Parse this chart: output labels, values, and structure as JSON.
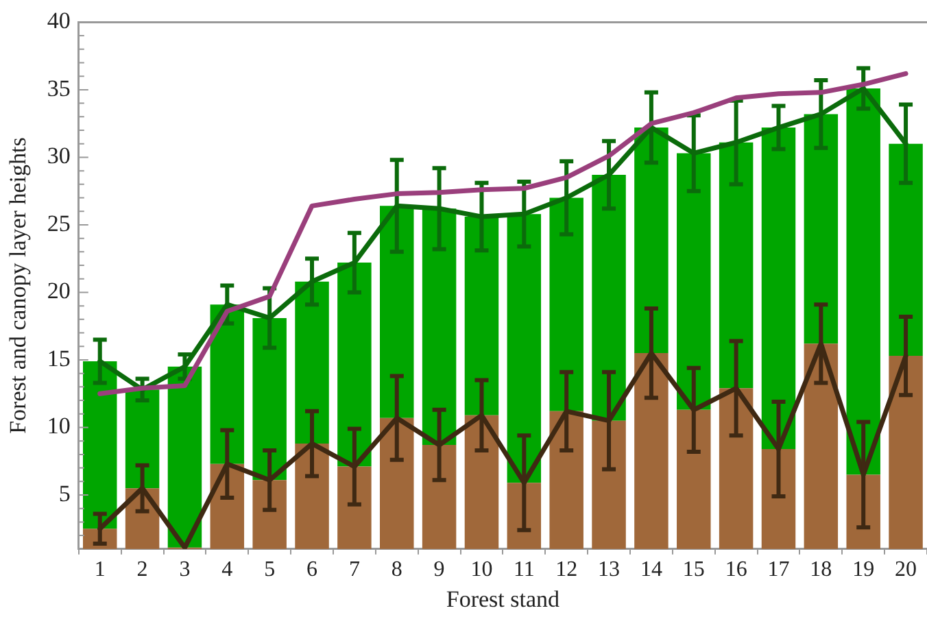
{
  "chart_data": {
    "type": "bar",
    "xlabel": "Forest stand",
    "ylabel": "Forest and canopy layer heights",
    "stacked": true,
    "x": [
      1,
      2,
      3,
      4,
      5,
      6,
      7,
      8,
      9,
      10,
      11,
      12,
      13,
      14,
      15,
      16,
      17,
      18,
      19,
      20
    ],
    "series": [
      {
        "color": "#a0683a",
        "values": [
          2.5,
          5.5,
          1.1,
          7.3,
          6.1,
          8.8,
          7.1,
          10.7,
          8.7,
          10.9,
          5.9,
          11.2,
          10.5,
          15.5,
          11.3,
          12.9,
          8.4,
          16.2,
          6.5,
          15.3
        ]
      },
      {
        "color": "#00a600",
        "values": [
          12.4,
          7.3,
          13.4,
          11.8,
          12.0,
          12.0,
          15.1,
          15.7,
          17.5,
          14.7,
          19.9,
          15.8,
          18.2,
          16.7,
          19.0,
          18.2,
          23.8,
          17.0,
          28.6,
          15.7
        ]
      },
      {
        "type": "line",
        "color": "#0b6b0b",
        "values": [
          14.9,
          12.8,
          14.5,
          19.1,
          18.1,
          20.8,
          22.2,
          26.4,
          26.2,
          25.6,
          25.8,
          27.0,
          28.7,
          32.2,
          30.3,
          31.1,
          32.2,
          33.2,
          35.1,
          31.0
        ],
        "errors": [
          1.6,
          0.8,
          0.9,
          1.4,
          2.2,
          1.7,
          2.2,
          3.4,
          3.0,
          2.5,
          2.4,
          2.7,
          2.5,
          2.6,
          2.8,
          3.1,
          1.6,
          2.5,
          1.5,
          2.9
        ]
      },
      {
        "type": "line",
        "color": "#3f2913",
        "values": [
          2.5,
          5.5,
          1.1,
          7.3,
          6.1,
          8.8,
          7.1,
          10.7,
          8.7,
          10.9,
          5.9,
          11.2,
          10.5,
          15.5,
          11.3,
          12.9,
          8.4,
          16.2,
          6.5,
          15.3
        ],
        "errors": [
          1.1,
          1.7,
          null,
          2.5,
          2.2,
          2.4,
          2.8,
          3.1,
          2.6,
          2.6,
          3.5,
          2.9,
          3.6,
          3.3,
          3.1,
          3.5,
          3.5,
          2.9,
          3.9,
          2.9
        ]
      },
      {
        "type": "line",
        "color": "#9a3f7c",
        "values": [
          12.5,
          12.9,
          13.1,
          18.6,
          19.7,
          26.4,
          26.9,
          27.3,
          27.4,
          27.6,
          27.7,
          28.5,
          30.1,
          32.5,
          33.3,
          34.4,
          34.7,
          34.8,
          35.4,
          36.2
        ]
      }
    ],
    "xlim": [
      0.5,
      20.5
    ],
    "xticks": [
      1,
      2,
      3,
      4,
      5,
      6,
      7,
      8,
      9,
      10,
      11,
      12,
      13,
      14,
      15,
      16,
      17,
      18,
      19,
      20
    ],
    "ylim": [
      1,
      40
    ],
    "yticks": [
      {
        "value": 2,
        "label": null
      },
      {
        "value": 3,
        "label": null
      },
      {
        "value": 4,
        "label": null
      },
      5,
      {
        "value": 6,
        "label": null
      },
      {
        "value": 7,
        "label": null
      },
      {
        "value": 8,
        "label": null
      },
      {
        "value": 9,
        "label": null
      },
      10,
      {
        "value": 11,
        "label": null
      },
      {
        "value": 12,
        "label": null
      },
      {
        "value": 13,
        "label": null
      },
      {
        "value": 14,
        "label": null
      },
      15,
      {
        "value": 16,
        "label": null
      },
      {
        "value": 17,
        "label": null
      },
      {
        "value": 18,
        "label": null
      },
      {
        "value": 19,
        "label": null
      },
      20,
      {
        "value": 21,
        "label": null
      },
      {
        "value": 22,
        "label": null
      },
      {
        "value": 23,
        "label": null
      },
      {
        "value": 24,
        "label": null
      },
      25,
      {
        "value": 26,
        "label": null
      },
      {
        "value": 27,
        "label": null
      },
      {
        "value": 28,
        "label": null
      },
      {
        "value": 29,
        "label": null
      },
      30,
      {
        "value": 31,
        "label": null
      },
      {
        "value": 32,
        "label": null
      },
      {
        "value": 33,
        "label": null
      },
      {
        "value": 34,
        "label": null
      },
      35,
      {
        "value": 36,
        "label": null
      },
      {
        "value": 37,
        "label": null
      },
      {
        "value": 38,
        "label": null
      },
      {
        "value": 39,
        "label": null
      },
      40
    ],
    "grid": false,
    "legend": false,
    "marker": "none",
    "line_style": "solid"
  }
}
